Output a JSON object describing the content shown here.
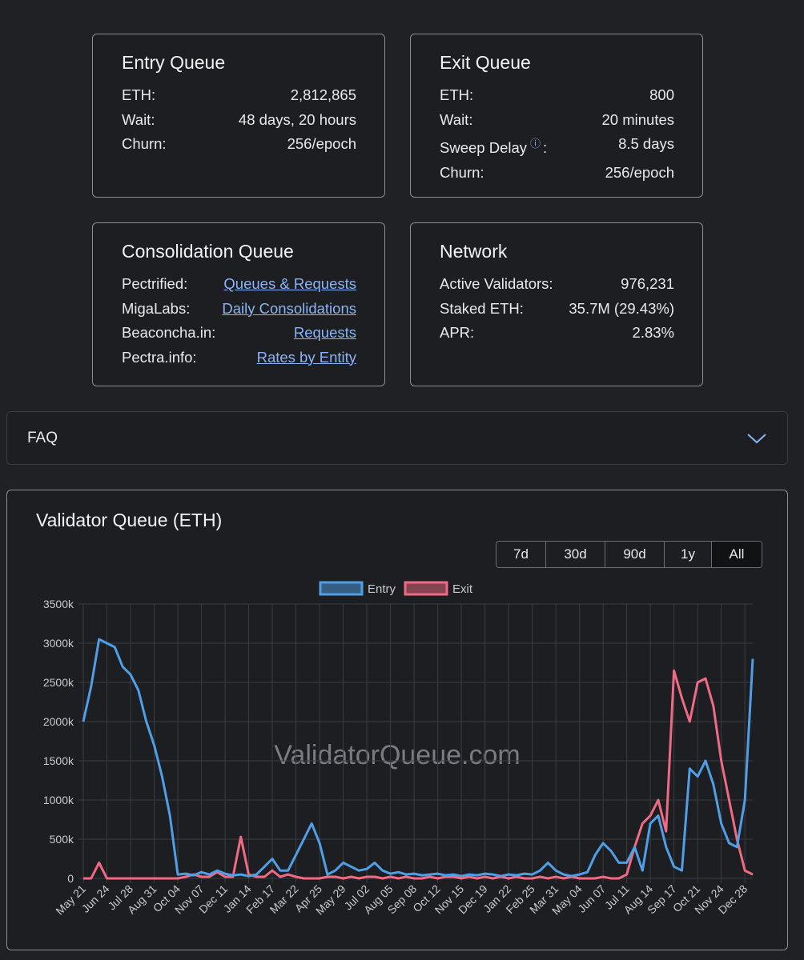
{
  "cards": [
    {
      "title": "Entry Queue",
      "rows": [
        {
          "label": "ETH:",
          "value": "2,812,865"
        },
        {
          "label": "Wait:",
          "value": "48 days, 20 hours"
        },
        {
          "label": "Churn:",
          "value": "256/epoch"
        }
      ]
    },
    {
      "title": "Exit Queue",
      "rows": [
        {
          "label": "ETH:",
          "value": "800"
        },
        {
          "label": "Wait:",
          "value": "20 minutes"
        },
        {
          "label": "Sweep Delay",
          "info": "ⓘ",
          "label_suffix": ":",
          "value": "8.5 days"
        },
        {
          "label": "Churn:",
          "value": "256/epoch"
        }
      ]
    },
    {
      "title": "Consolidation Queue",
      "rows": [
        {
          "label": "Pectrified:",
          "link": "Queues & Requests"
        },
        {
          "label": "MigaLabs:",
          "link": "Daily Consolidations"
        },
        {
          "label": "Beaconcha.in:",
          "link": "Requests"
        },
        {
          "label": "Pectra.info:",
          "link": "Rates by Entity"
        }
      ]
    },
    {
      "title": "Network",
      "rows": [
        {
          "label": "Active Validators:",
          "value": "976,231"
        },
        {
          "label": "Staked ETH:",
          "value": "35.7M (29.43%)"
        },
        {
          "label": "APR:",
          "value": "2.83%"
        }
      ]
    }
  ],
  "faq": "FAQ",
  "panel": {
    "title": "Validator Queue (ETH)",
    "ranges": [
      "7d",
      "30d",
      "90d",
      "1y",
      "All"
    ],
    "selected": "All",
    "watermark": "ValidatorQueue.com"
  },
  "chart_data": {
    "type": "line",
    "categories": [
      "May 21",
      null,
      null,
      "Jun 24",
      null,
      null,
      "Jul 28",
      null,
      null,
      "Aug 31",
      null,
      null,
      "Oct 04",
      null,
      null,
      "Nov 07",
      null,
      null,
      "Dec 11",
      null,
      null,
      "Jan 14",
      null,
      null,
      "Feb 17",
      null,
      null,
      "Mar 22",
      null,
      null,
      "Apr 25",
      null,
      null,
      "May 29",
      null,
      null,
      "Jul 02",
      null,
      null,
      "Aug 05",
      null,
      null,
      "Sep 08",
      null,
      null,
      "Oct 12",
      null,
      null,
      "Nov 15",
      null,
      null,
      "Dec 19",
      null,
      null,
      "Jan 22",
      null,
      null,
      "Feb 25",
      null,
      null,
      "Mar 31",
      null,
      null,
      "May 04",
      null,
      null,
      "Jun 07",
      null,
      null,
      "Jul 11",
      null,
      null,
      "Aug 14",
      null,
      null,
      "Sep 17",
      null,
      null,
      "Oct 21",
      null,
      null,
      "Nov 24",
      null,
      null,
      "Dec 28",
      null
    ],
    "series": [
      {
        "name": "Entry",
        "color": "#4f9fe6",
        "values": [
          2000000,
          2450000,
          3050000,
          3000000,
          2950000,
          2700000,
          2600000,
          2400000,
          2000000,
          1700000,
          1300000,
          800000,
          50000,
          60000,
          40000,
          80000,
          50000,
          100000,
          60000,
          40000,
          50000,
          30000,
          50000,
          150000,
          250000,
          100000,
          100000,
          300000,
          500000,
          700000,
          450000,
          50000,
          100000,
          200000,
          150000,
          100000,
          120000,
          200000,
          100000,
          60000,
          80000,
          50000,
          60000,
          40000,
          50000,
          60000,
          40000,
          50000,
          30000,
          50000,
          40000,
          60000,
          50000,
          30000,
          50000,
          40000,
          60000,
          50000,
          100000,
          200000,
          100000,
          50000,
          30000,
          50000,
          80000,
          300000,
          450000,
          350000,
          200000,
          200000,
          400000,
          100000,
          700000,
          800000,
          400000,
          150000,
          100000,
          1400000,
          1300000,
          1500000,
          1200000,
          700000,
          450000,
          400000,
          1000000,
          2800000
        ]
      },
      {
        "name": "Exit",
        "color": "#f06a84",
        "values": [
          0,
          0,
          200000,
          0,
          0,
          0,
          0,
          0,
          0,
          0,
          0,
          0,
          0,
          20000,
          50000,
          20000,
          20000,
          80000,
          20000,
          20000,
          530000,
          50000,
          20000,
          20000,
          100000,
          20000,
          50000,
          20000,
          0,
          0,
          0,
          20000,
          20000,
          0,
          20000,
          0,
          20000,
          20000,
          0,
          20000,
          0,
          20000,
          0,
          0,
          20000,
          0,
          20000,
          20000,
          0,
          20000,
          0,
          20000,
          0,
          20000,
          0,
          20000,
          0,
          0,
          20000,
          0,
          20000,
          0,
          20000,
          0,
          0,
          0,
          20000,
          0,
          0,
          50000,
          400000,
          700000,
          800000,
          1000000,
          600000,
          2650000,
          2300000,
          2000000,
          2500000,
          2550000,
          2200000,
          1500000,
          1000000,
          500000,
          100000,
          50000
        ]
      }
    ],
    "ylim": [
      0,
      3500000
    ],
    "yticks": [
      0,
      {
        "value": 500000,
        "label": "500k"
      },
      {
        "value": 1000000,
        "label": "1000k"
      },
      {
        "value": 1500000,
        "label": "1500k"
      },
      {
        "value": 2000000,
        "label": "2000k"
      },
      {
        "value": 2500000,
        "label": "2500k"
      },
      {
        "value": 3000000,
        "label": "3000k"
      },
      {
        "value": 3500000,
        "label": "3500k"
      }
    ],
    "grid": true,
    "legend": "top"
  }
}
